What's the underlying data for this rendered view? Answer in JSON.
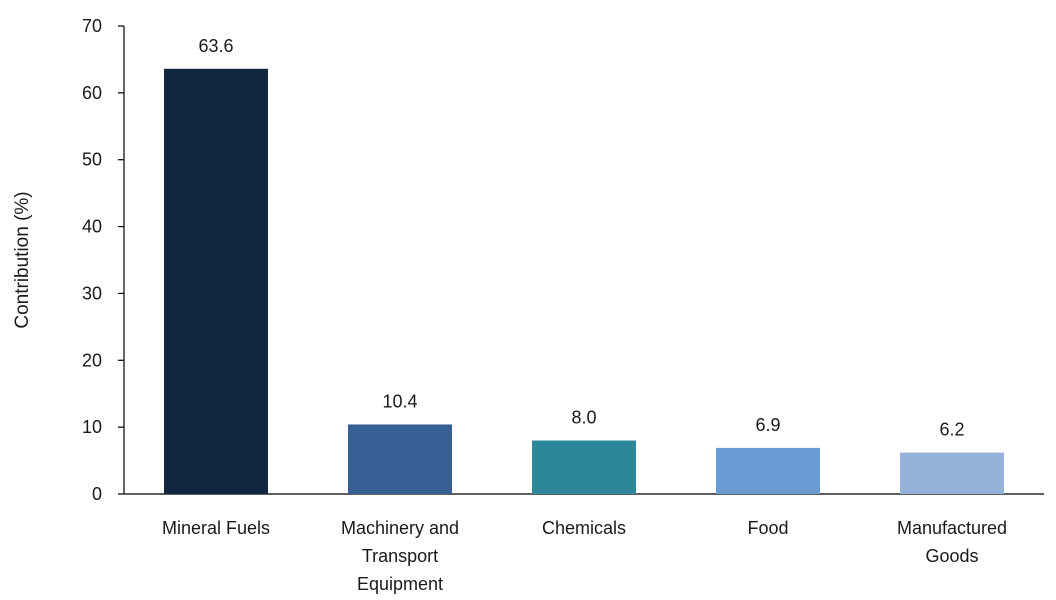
{
  "chart_data": {
    "type": "bar",
    "title": "",
    "xlabel": "",
    "ylabel": "Contribution (%)",
    "categories": [
      "Mineral Fuels",
      "Machinery and Transport Equipment",
      "Chemicals",
      "Food",
      "Manufactured Goods"
    ],
    "category_label_lines": [
      [
        "Mineral Fuels"
      ],
      [
        "Machinery and",
        "Transport",
        "Equipment"
      ],
      [
        "Chemicals"
      ],
      [
        "Food"
      ],
      [
        "Manufactured",
        "Goods"
      ]
    ],
    "values": [
      63.6,
      10.4,
      8.0,
      6.9,
      6.2
    ],
    "value_labels": [
      "63.6",
      "10.4",
      "8.0",
      "6.9",
      "6.2"
    ],
    "colors": [
      "#13263f",
      "#375f93",
      "#2e8799",
      "#6b9bd3",
      "#95b3d9"
    ],
    "ylim": [
      0,
      70
    ],
    "yticks": [
      0,
      10,
      20,
      30,
      40,
      50,
      60,
      70
    ],
    "grid": false,
    "legend": "none"
  }
}
